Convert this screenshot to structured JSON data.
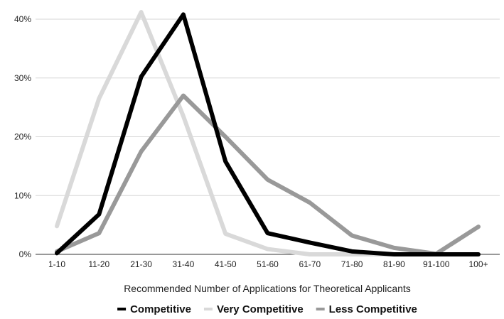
{
  "chart_data": {
    "type": "line",
    "categories": [
      "1-10",
      "11-20",
      "21-30",
      "31-40",
      "41-50",
      "51-60",
      "61-70",
      "71-80",
      "81-90",
      "91-100",
      "100+"
    ],
    "xlabel": "Recommended Number of Applications for Theoretical Applicants",
    "ylabel": "",
    "ylim": [
      0,
      40
    ],
    "yticks": [
      "0%",
      "10%",
      "20%",
      "30%",
      "40%"
    ],
    "grid": true,
    "legend_position": "bottom",
    "series": [
      {
        "name": "Competitive",
        "color": "#000000",
        "values": [
          0.2,
          6.8,
          30.2,
          40.8,
          15.8,
          3.6,
          2.0,
          0.5,
          0.0,
          0.0,
          0.0
        ]
      },
      {
        "name": "Very Competitive",
        "color": "#d9d9d9",
        "values": [
          4.8,
          26.5,
          41.2,
          23.5,
          3.5,
          0.9,
          0.0,
          0.0,
          0.0,
          0.0,
          0.0
        ]
      },
      {
        "name": "Less Competitive",
        "color": "#999999",
        "values": [
          0.5,
          3.6,
          17.5,
          27.0,
          20.0,
          12.7,
          8.8,
          3.2,
          1.1,
          0.1,
          4.7
        ]
      }
    ]
  }
}
